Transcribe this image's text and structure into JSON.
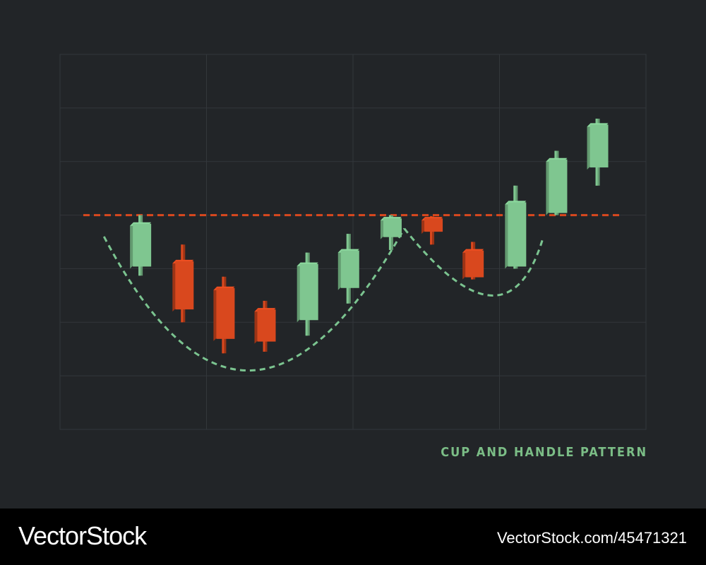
{
  "chart_data": {
    "type": "candlestick",
    "title": "CUP AND HANDLE PATTERN",
    "xlabel": "",
    "ylabel": "",
    "grid": true,
    "ylim": [
      0,
      7
    ],
    "xlim": [
      0,
      4
    ],
    "resistance_level": 4.0,
    "colors": {
      "up": "#7fc690",
      "down": "#d9481e",
      "resistance": "#d9481e",
      "pattern": "#7bc490",
      "grid": "#33373b"
    },
    "candles": [
      {
        "x": 0.55,
        "open": 3.0,
        "close": 3.8,
        "high": 4.0,
        "low": 2.87,
        "dir": "up"
      },
      {
        "x": 0.84,
        "open": 3.1,
        "close": 2.2,
        "high": 3.45,
        "low": 2.0,
        "dir": "down"
      },
      {
        "x": 1.12,
        "open": 2.6,
        "close": 1.65,
        "high": 2.85,
        "low": 1.42,
        "dir": "down"
      },
      {
        "x": 1.4,
        "open": 2.2,
        "close": 1.6,
        "high": 2.4,
        "low": 1.45,
        "dir": "down"
      },
      {
        "x": 1.69,
        "open": 2.0,
        "close": 3.05,
        "high": 3.3,
        "low": 1.75,
        "dir": "up"
      },
      {
        "x": 1.97,
        "open": 2.6,
        "close": 3.3,
        "high": 3.65,
        "low": 2.35,
        "dir": "up"
      },
      {
        "x": 2.26,
        "open": 3.55,
        "close": 3.9,
        "high": 4.0,
        "low": 3.35,
        "dir": "up"
      },
      {
        "x": 2.54,
        "open": 3.9,
        "close": 3.65,
        "high": 3.98,
        "low": 3.45,
        "dir": "down"
      },
      {
        "x": 2.82,
        "open": 3.3,
        "close": 2.8,
        "high": 3.5,
        "low": 2.8,
        "dir": "down"
      },
      {
        "x": 3.11,
        "open": 3.0,
        "close": 4.2,
        "high": 4.55,
        "low": 3.0,
        "dir": "up"
      },
      {
        "x": 3.39,
        "open": 4.0,
        "close": 5.0,
        "high": 5.2,
        "low": 4.0,
        "dir": "up"
      },
      {
        "x": 3.67,
        "open": 4.85,
        "close": 5.65,
        "high": 5.8,
        "low": 4.55,
        "dir": "up"
      }
    ],
    "cup_curve": [
      [
        0.3,
        3.6
      ],
      [
        1.3,
        1.1
      ],
      [
        2.35,
        3.75
      ]
    ],
    "handle_curve": [
      [
        2.35,
        3.75
      ],
      [
        2.94,
        2.5
      ],
      [
        3.3,
        3.6
      ]
    ]
  },
  "footer": {
    "brand": "VectorStock",
    "image_id": "VectorStock.com/45471321"
  }
}
